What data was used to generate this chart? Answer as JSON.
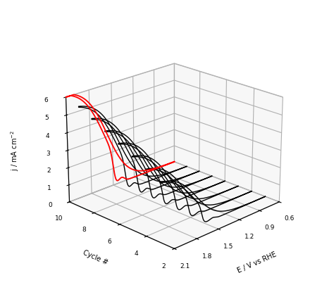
{
  "xlabel": "E / V vs RHE",
  "ylabel": "Cycle #",
  "zlabel": "j / mA cm$^{-2}$",
  "xlim": [
    0.6,
    2.1
  ],
  "ylim": [
    2,
    10
  ],
  "zlim": [
    0,
    6
  ],
  "xticks": [
    0.6,
    0.9,
    1.2,
    1.5,
    1.8,
    2.1
  ],
  "yticks": [
    2,
    4,
    6,
    8,
    10
  ],
  "zticks": [
    0,
    1,
    2,
    3,
    4,
    5,
    6
  ],
  "black_cycles": [
    3,
    4,
    5,
    6,
    7,
    8,
    9
  ],
  "red_cycle": 10,
  "elev": 22,
  "azim": -135
}
